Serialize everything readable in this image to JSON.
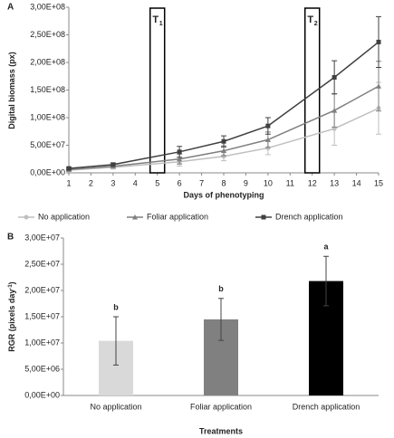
{
  "chart_data": [
    {
      "type": "line",
      "panel_label": "A",
      "xlabel": "Days of phenotyping",
      "ylabel": "Digital biomass (px)",
      "x": [
        1,
        3,
        6,
        8,
        10,
        13,
        15
      ],
      "xlim": [
        1,
        15
      ],
      "xticks": [
        1,
        2,
        3,
        4,
        5,
        6,
        7,
        8,
        9,
        10,
        11,
        12,
        13,
        14,
        15
      ],
      "ylim": [
        0,
        300000000
      ],
      "yticks": [
        {
          "value": 0,
          "label": "0,00E+00"
        },
        {
          "value": 50000000,
          "label": "5,00E+07"
        },
        {
          "value": 100000000,
          "label": "1,00E+08"
        },
        {
          "value": 150000000,
          "label": "1,50E+08"
        },
        {
          "value": 200000000,
          "label": "2,00E+08"
        },
        {
          "value": 250000000,
          "label": "2,50E+08"
        },
        {
          "value": 300000000,
          "label": "3,00E+08"
        }
      ],
      "grid": false,
      "legend": "bottom",
      "annotations": [
        {
          "label": "T",
          "sub": "1",
          "x": 5
        },
        {
          "label": "T",
          "sub": "2",
          "x": 12
        }
      ],
      "series": [
        {
          "name": "No application",
          "color": "#bfbfbf",
          "marker": "circle",
          "values": [
            5000000,
            10000000,
            20000000,
            30000000,
            45000000,
            80000000,
            117000000
          ],
          "errors": [
            2000000,
            3000000,
            8000000,
            8000000,
            12000000,
            30000000,
            47000000
          ]
        },
        {
          "name": "Foliar application",
          "color": "#7f7f7f",
          "marker": "triangle",
          "values": [
            6000000,
            12000000,
            25000000,
            40000000,
            60000000,
            113000000,
            157000000
          ],
          "errors": [
            2000000,
            3000000,
            9000000,
            9000000,
            14000000,
            30000000,
            45000000
          ]
        },
        {
          "name": "Drench application",
          "color": "#404040",
          "marker": "square",
          "values": [
            8000000,
            15000000,
            38000000,
            57000000,
            85000000,
            173000000,
            237000000
          ],
          "errors": [
            2000000,
            3000000,
            10000000,
            10000000,
            15000000,
            30000000,
            46000000
          ]
        }
      ]
    },
    {
      "type": "bar",
      "panel_label": "B",
      "xlabel": "Treatments",
      "ylabel": "RGR (pixels day",
      "ylabel_sup": "-1",
      "ylabel_end": ")",
      "categories": [
        "No application",
        "Foliar application",
        "Drench application"
      ],
      "values": [
        10400000,
        14500000,
        21800000
      ],
      "errors": [
        4600000,
        4000000,
        4700000
      ],
      "colors": [
        "#d9d9d9",
        "#808080",
        "#000000"
      ],
      "significance_labels": [
        "b",
        "b",
        "a"
      ],
      "ylim": [
        0,
        30000000
      ],
      "yticks": [
        {
          "value": 0,
          "label": "0,00E+00"
        },
        {
          "value": 5000000,
          "label": "5,00E+06"
        },
        {
          "value": 10000000,
          "label": "1,00E+07"
        },
        {
          "value": 15000000,
          "label": "1,50E+07"
        },
        {
          "value": 20000000,
          "label": "2,00E+07"
        },
        {
          "value": 25000000,
          "label": "2,50E+07"
        },
        {
          "value": 30000000,
          "label": "3,00E+07"
        }
      ],
      "grid": false
    }
  ]
}
